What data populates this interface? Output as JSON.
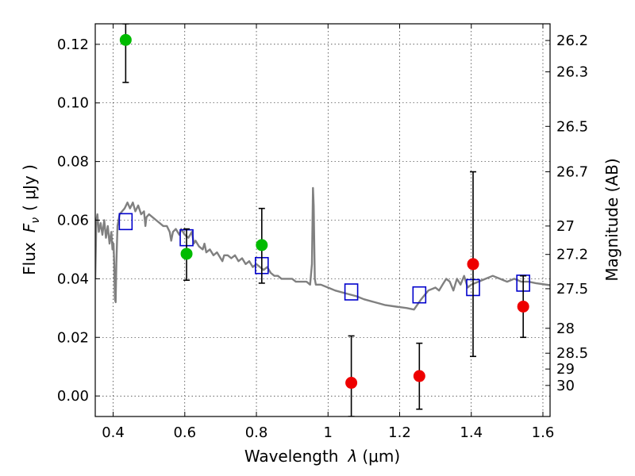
{
  "chart_data": {
    "type": "scatter",
    "xlabel_text": "Wavelength",
    "xlabel_symbol": "λ",
    "xlabel_unit": "(μm)",
    "ylabel_text": "Flux",
    "ylabel_symbol": "F",
    "ylabel_subscript": "ν",
    "ylabel_unit": "( μJy )",
    "y2label": "Magnitude (AB)",
    "xlim": [
      0.35,
      1.62
    ],
    "ylim": [
      -0.007,
      0.127
    ],
    "grid": true,
    "x_ticks": [
      0.4,
      0.6,
      0.8,
      1.0,
      1.2,
      1.4,
      1.6
    ],
    "x_tick_labels": [
      "0.4",
      "0.6",
      "0.8",
      "1",
      "1.2",
      "1.4",
      "1.6"
    ],
    "y_ticks": [
      0.0,
      0.02,
      0.04,
      0.06,
      0.08,
      0.1,
      0.12
    ],
    "y_tick_labels": [
      "0.00",
      "0.02",
      "0.04",
      "0.06",
      "0.08",
      "0.10",
      "0.12"
    ],
    "y2_ticks": [
      {
        "label": "26.2",
        "flux": 0.1213
      },
      {
        "label": "26.3",
        "flux": 0.1106
      },
      {
        "label": "26.5",
        "flux": 0.092
      },
      {
        "label": "26.7",
        "flux": 0.0765
      },
      {
        "label": "27",
        "flux": 0.058
      },
      {
        "label": "27.2",
        "flux": 0.0483
      },
      {
        "label": "27.5",
        "flux": 0.0366
      },
      {
        "label": "28",
        "flux": 0.0231
      },
      {
        "label": "28.5",
        "flux": 0.0146
      },
      {
        "label": "29",
        "flux": 0.0092
      },
      {
        "label": "30",
        "flux": 0.0036
      }
    ],
    "series": [
      {
        "kind": "line",
        "color": "#808080",
        "points": [
          [
            0.35,
            0.04
          ],
          [
            0.353,
            0.06
          ],
          [
            0.356,
            0.062
          ],
          [
            0.36,
            0.056
          ],
          [
            0.365,
            0.059
          ],
          [
            0.37,
            0.055
          ],
          [
            0.375,
            0.06
          ],
          [
            0.38,
            0.054
          ],
          [
            0.385,
            0.058
          ],
          [
            0.39,
            0.052
          ],
          [
            0.395,
            0.056
          ],
          [
            0.398,
            0.05
          ],
          [
            0.401,
            0.052
          ],
          [
            0.403,
            0.045
          ],
          [
            0.405,
            0.033
          ],
          [
            0.407,
            0.032
          ],
          [
            0.409,
            0.045
          ],
          [
            0.412,
            0.058
          ],
          [
            0.418,
            0.062
          ],
          [
            0.425,
            0.063
          ],
          [
            0.432,
            0.064
          ],
          [
            0.44,
            0.066
          ],
          [
            0.447,
            0.064
          ],
          [
            0.455,
            0.066
          ],
          [
            0.462,
            0.063
          ],
          [
            0.47,
            0.065
          ],
          [
            0.478,
            0.062
          ],
          [
            0.486,
            0.063
          ],
          [
            0.49,
            0.058
          ],
          [
            0.493,
            0.061
          ],
          [
            0.5,
            0.062
          ],
          [
            0.51,
            0.061
          ],
          [
            0.52,
            0.06
          ],
          [
            0.53,
            0.059
          ],
          [
            0.54,
            0.058
          ],
          [
            0.55,
            0.058
          ],
          [
            0.558,
            0.056
          ],
          [
            0.562,
            0.053
          ],
          [
            0.567,
            0.056
          ],
          [
            0.575,
            0.057
          ],
          [
            0.585,
            0.055
          ],
          [
            0.59,
            0.057
          ],
          [
            0.6,
            0.055
          ],
          [
            0.61,
            0.054
          ],
          [
            0.62,
            0.056
          ],
          [
            0.625,
            0.052
          ],
          [
            0.63,
            0.053
          ],
          [
            0.64,
            0.051
          ],
          [
            0.65,
            0.05
          ],
          [
            0.655,
            0.052
          ],
          [
            0.66,
            0.049
          ],
          [
            0.67,
            0.05
          ],
          [
            0.68,
            0.048
          ],
          [
            0.69,
            0.049
          ],
          [
            0.7,
            0.047
          ],
          [
            0.705,
            0.046
          ],
          [
            0.71,
            0.048
          ],
          [
            0.72,
            0.048
          ],
          [
            0.73,
            0.047
          ],
          [
            0.74,
            0.048
          ],
          [
            0.75,
            0.046
          ],
          [
            0.76,
            0.047
          ],
          [
            0.77,
            0.045
          ],
          [
            0.78,
            0.046
          ],
          [
            0.79,
            0.044
          ],
          [
            0.8,
            0.045
          ],
          [
            0.81,
            0.044
          ],
          [
            0.82,
            0.043
          ],
          [
            0.83,
            0.044
          ],
          [
            0.84,
            0.042
          ],
          [
            0.85,
            0.041
          ],
          [
            0.86,
            0.041
          ],
          [
            0.87,
            0.04
          ],
          [
            0.88,
            0.04
          ],
          [
            0.89,
            0.04
          ],
          [
            0.9,
            0.04
          ],
          [
            0.91,
            0.039
          ],
          [
            0.92,
            0.039
          ],
          [
            0.93,
            0.039
          ],
          [
            0.94,
            0.039
          ],
          [
            0.95,
            0.038
          ],
          [
            0.955,
            0.045
          ],
          [
            0.958,
            0.071
          ],
          [
            0.96,
            0.065
          ],
          [
            0.963,
            0.04
          ],
          [
            0.966,
            0.038
          ],
          [
            0.98,
            0.038
          ],
          [
            1.0,
            0.037
          ],
          [
            1.02,
            0.036
          ],
          [
            1.05,
            0.035
          ],
          [
            1.08,
            0.034
          ],
          [
            1.1,
            0.033
          ],
          [
            1.13,
            0.032
          ],
          [
            1.16,
            0.031
          ],
          [
            1.19,
            0.0305
          ],
          [
            1.22,
            0.03
          ],
          [
            1.24,
            0.0295
          ],
          [
            1.26,
            0.033
          ],
          [
            1.28,
            0.036
          ],
          [
            1.3,
            0.037
          ],
          [
            1.31,
            0.036
          ],
          [
            1.32,
            0.038
          ],
          [
            1.33,
            0.04
          ],
          [
            1.34,
            0.039
          ],
          [
            1.35,
            0.036
          ],
          [
            1.36,
            0.04
          ],
          [
            1.37,
            0.038
          ],
          [
            1.38,
            0.041
          ],
          [
            1.39,
            0.037
          ],
          [
            1.4,
            0.038
          ],
          [
            1.42,
            0.039
          ],
          [
            1.44,
            0.04
          ],
          [
            1.46,
            0.041
          ],
          [
            1.48,
            0.04
          ],
          [
            1.5,
            0.039
          ],
          [
            1.52,
            0.04
          ],
          [
            1.54,
            0.039
          ],
          [
            1.56,
            0.039
          ],
          [
            1.58,
            0.0385
          ],
          [
            1.62,
            0.0378
          ]
        ]
      },
      {
        "kind": "squares",
        "color": "#0000cc",
        "points": [
          [
            0.435,
            0.0595
          ],
          [
            0.605,
            0.054
          ],
          [
            0.815,
            0.0445
          ],
          [
            1.065,
            0.0355
          ],
          [
            1.255,
            0.0345
          ],
          [
            1.405,
            0.037
          ],
          [
            1.545,
            0.0385
          ]
        ]
      },
      {
        "kind": "errorbar",
        "color": "#00bb00",
        "points": [
          {
            "x": 0.435,
            "y": 0.1215,
            "lo": 0.107,
            "hi": 0.127
          },
          {
            "x": 0.605,
            "y": 0.0485,
            "lo": 0.0395,
            "hi": 0.057
          },
          {
            "x": 0.815,
            "y": 0.0515,
            "lo": 0.0385,
            "hi": 0.064
          }
        ]
      },
      {
        "kind": "errorbar",
        "color": "#ee0000",
        "points": [
          {
            "x": 1.065,
            "y": 0.0045,
            "lo": -0.007,
            "hi": 0.0205
          },
          {
            "x": 1.255,
            "y": 0.0068,
            "lo": -0.0045,
            "hi": 0.018
          },
          {
            "x": 1.405,
            "y": 0.045,
            "lo": 0.0135,
            "hi": 0.0765
          },
          {
            "x": 1.545,
            "y": 0.0305,
            "lo": 0.02,
            "hi": 0.041
          }
        ]
      }
    ]
  }
}
